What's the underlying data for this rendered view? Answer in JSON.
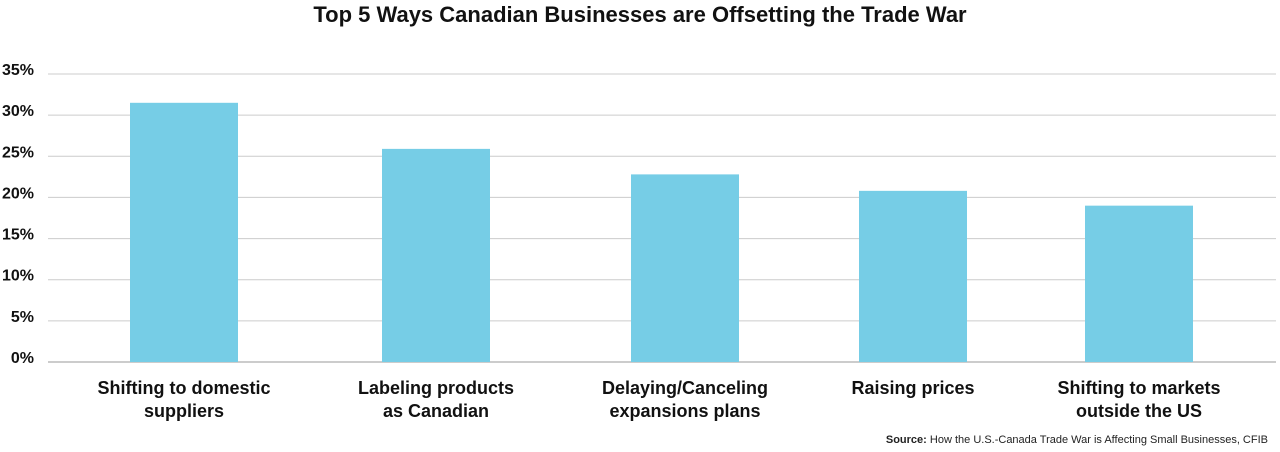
{
  "chart_data": {
    "type": "bar",
    "title": "Top 5 Ways Canadian Businesses are Offsetting the Trade War",
    "categories": [
      [
        "Shifting to domestic",
        "suppliers"
      ],
      [
        "Labeling products",
        "as Canadian"
      ],
      [
        "Delaying/Canceling",
        "expansions plans"
      ],
      [
        "Raising prices"
      ],
      [
        "Shifting to markets",
        "outside the US"
      ]
    ],
    "values": [
      31.5,
      25.9,
      22.8,
      20.8,
      19.0
    ],
    "ylim": [
      0,
      35
    ],
    "yticks": [
      0,
      5,
      10,
      15,
      20,
      25,
      30,
      35
    ],
    "ytick_labels": [
      "0%",
      "5%",
      "10%",
      "15%",
      "20%",
      "25%",
      "30%",
      "35%"
    ],
    "xlabel": "",
    "ylabel": "",
    "grid": true,
    "bar_color": "#76cde6",
    "grid_color": "#cccccc"
  },
  "source": {
    "label": "Source:",
    "text": "How the U.S.-Canada Trade War is Affecting Small Businesses, CFIB"
  }
}
